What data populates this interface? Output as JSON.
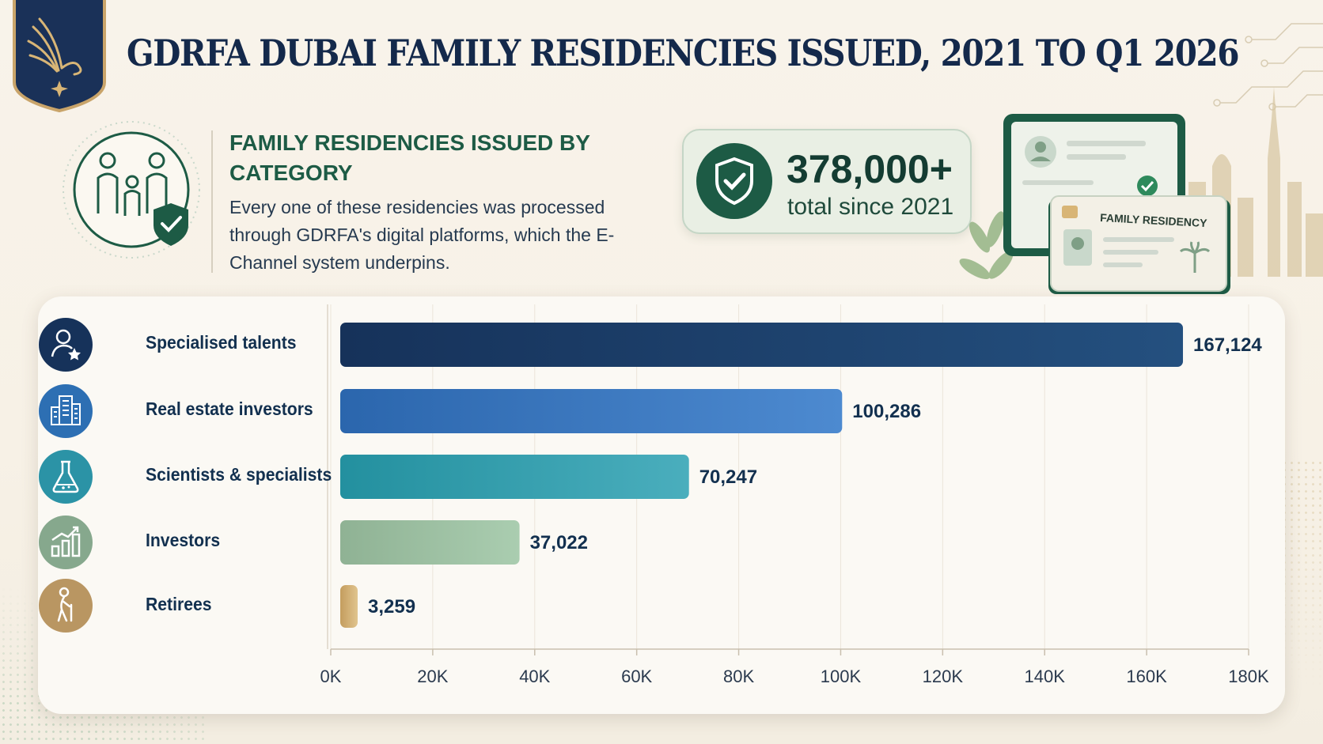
{
  "header": {
    "title": "GDRFA DUBAI FAMILY RESIDENCIES ISSUED, 2021 TO Q1 2026"
  },
  "intro": {
    "heading": "FAMILY RESIDENCIES ISSUED BY CATEGORY",
    "description": "Every one of these residencies was processed through GDRFA's digital platforms, which the E-Channel system underpins."
  },
  "stat": {
    "value": "378,000+",
    "label": "total since 2021",
    "icon": "shield-check-icon"
  },
  "devices": {
    "card_title": "FAMILY RESIDENCY"
  },
  "colors": {
    "navy": "#1a3d6b",
    "blue": "#3a79bf",
    "teal": "#2a9aa8",
    "sage": "#98bf9c",
    "gold": "#c9a46a",
    "green": "#1d5b45"
  },
  "chart_data": {
    "type": "bar",
    "orientation": "horizontal",
    "categories": [
      "Specialised talents",
      "Real estate investors",
      "Scientists & specialists",
      "Investors",
      "Retirees"
    ],
    "values": [
      167124,
      100286,
      70247,
      37022,
      3259
    ],
    "value_labels": [
      "167,124",
      "100,286",
      "70,247",
      "37,022",
      "3,259"
    ],
    "category_icons": [
      "person-star-icon",
      "buildings-icon",
      "flask-icon",
      "growth-chart-icon",
      "elderly-person-icon"
    ],
    "xlim": [
      0,
      180000
    ],
    "xticks": [
      0,
      20000,
      40000,
      60000,
      80000,
      100000,
      120000,
      140000,
      160000,
      180000
    ],
    "xtick_labels": [
      "0K",
      "20K",
      "40K",
      "60K",
      "80K",
      "100K",
      "120K",
      "140K",
      "160K",
      "180K"
    ],
    "grid": true
  }
}
